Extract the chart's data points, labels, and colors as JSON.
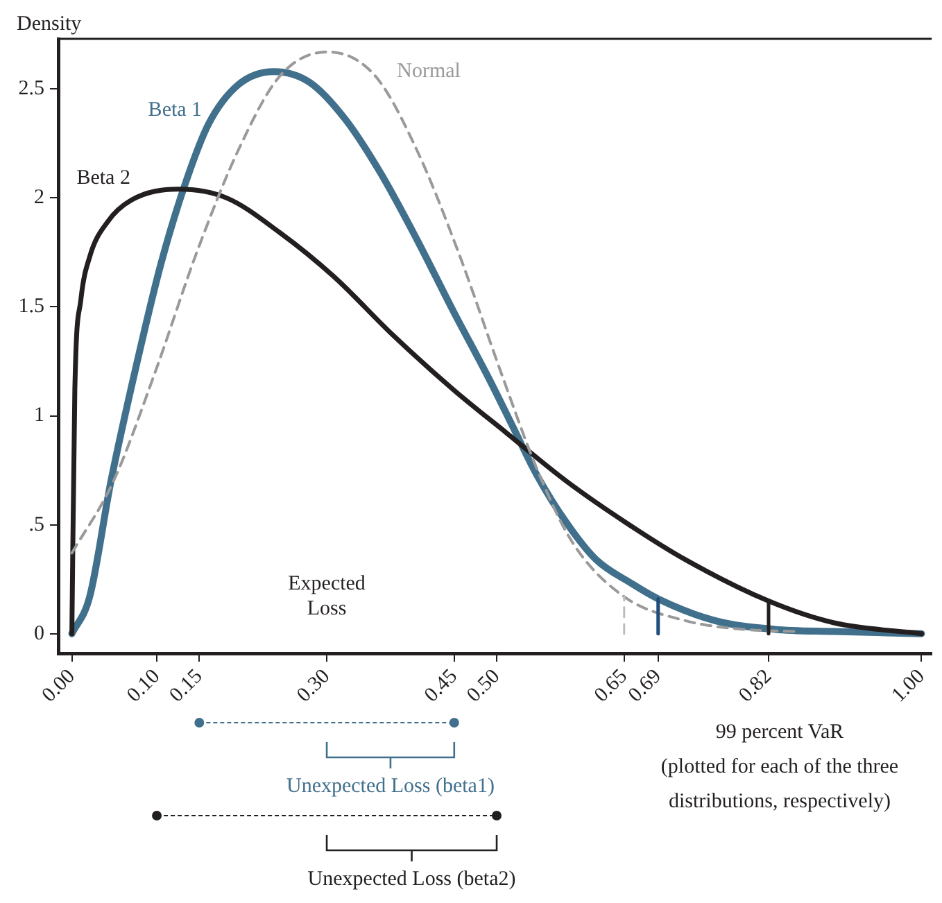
{
  "chart_data": {
    "type": "line",
    "ylabel": "Density",
    "xlim": [
      -0.016,
      1.012
    ],
    "ylim": [
      -0.09,
      2.73
    ],
    "xticks": [
      {
        "value": 0,
        "label": "0.00"
      },
      {
        "value": 0.1,
        "label": "0.10"
      },
      {
        "value": 0.15,
        "label": "0.15"
      },
      {
        "value": 0.3,
        "label": "0.30"
      },
      {
        "value": 0.45,
        "label": "0.45"
      },
      {
        "value": 0.5,
        "label": "0.50"
      },
      {
        "value": 0.65,
        "label": "0.65"
      },
      {
        "value": 0.69,
        "label": "0.69"
      },
      {
        "value": 0.82,
        "label": "0.82"
      },
      {
        "value": 1,
        "label": "1.00"
      }
    ],
    "yticks": [
      0,
      {
        "value": 0.5,
        "label": ".5"
      },
      1,
      1.5,
      2,
      2.5
    ],
    "grid": false,
    "legend": false,
    "marker": "none",
    "series": [
      {
        "name": "Beta 1",
        "color": "#41708c",
        "line_style": "solid",
        "x": [
          0,
          0.021,
          0.046,
          0.077,
          0.105,
          0.133,
          0.161,
          0.196,
          0.238,
          0.28,
          0.322,
          0.364,
          0.406,
          0.449,
          0.491,
          0.519,
          0.547,
          0.582,
          0.617,
          0.659,
          0.69,
          0.757,
          0.827,
          0.897,
          1
        ],
        "values": [
          0,
          0.17,
          0.7,
          1.25,
          1.7,
          2.06,
          2.34,
          2.52,
          2.58,
          2.53,
          2.36,
          2.11,
          1.81,
          1.48,
          1.17,
          0.95,
          0.73,
          0.51,
          0.34,
          0.23,
          0.16,
          0.06,
          0.02,
          0.01,
          0
        ]
      },
      {
        "name": "Beta 2",
        "color": "#231f20",
        "line_style": "solid",
        "x": [
          0,
          0.0035,
          0.0105,
          0.021,
          0.042,
          0.07,
          0.126,
          0.182,
          0.245,
          0.308,
          0.378,
          0.449,
          0.512,
          0.582,
          0.652,
          0.722,
          0.82,
          0.897,
          1
        ],
        "values": [
          0,
          1.12,
          1.53,
          1.73,
          1.89,
          1.99,
          2.04,
          2,
          1.84,
          1.64,
          1.37,
          1.12,
          0.92,
          0.7,
          0.51,
          0.34,
          0.15,
          0.05,
          0
        ]
      },
      {
        "name": "Normal",
        "color": "#9a9a9a",
        "line_style": "dashed",
        "x": [
          0,
          0.049,
          0.098,
          0.147,
          0.196,
          0.245,
          0.301,
          0.357,
          0.406,
          0.455,
          0.505,
          0.547,
          0.589,
          0.65,
          0.722,
          0.79,
          0.85
        ],
        "values": [
          0.37,
          0.7,
          1.2,
          1.75,
          2.22,
          2.56,
          2.67,
          2.56,
          2.22,
          1.75,
          1.2,
          0.76,
          0.42,
          0.17,
          0.06,
          0.02,
          0.01
        ]
      },
      {
        "color": "#bdbdbd",
        "line_style": "dashed",
        "x": [
          0.65,
          0.65
        ],
        "values": [
          0,
          0.17
        ]
      },
      {
        "color": "#1f4e7a",
        "line_style": "solid",
        "x": [
          0.69,
          0.69
        ],
        "values": [
          0,
          0.16
        ]
      },
      {
        "color": "#231f20",
        "line_style": "solid",
        "x": [
          0.82,
          0.82
        ],
        "values": [
          0,
          0.15
        ]
      }
    ],
    "annotations": [
      "Expected Loss",
      "Unexpected Loss (beta1)",
      "Unexpected Loss (beta2)",
      "99 percent VaR (plotted for each of the three distributions, respectively)"
    ]
  }
}
